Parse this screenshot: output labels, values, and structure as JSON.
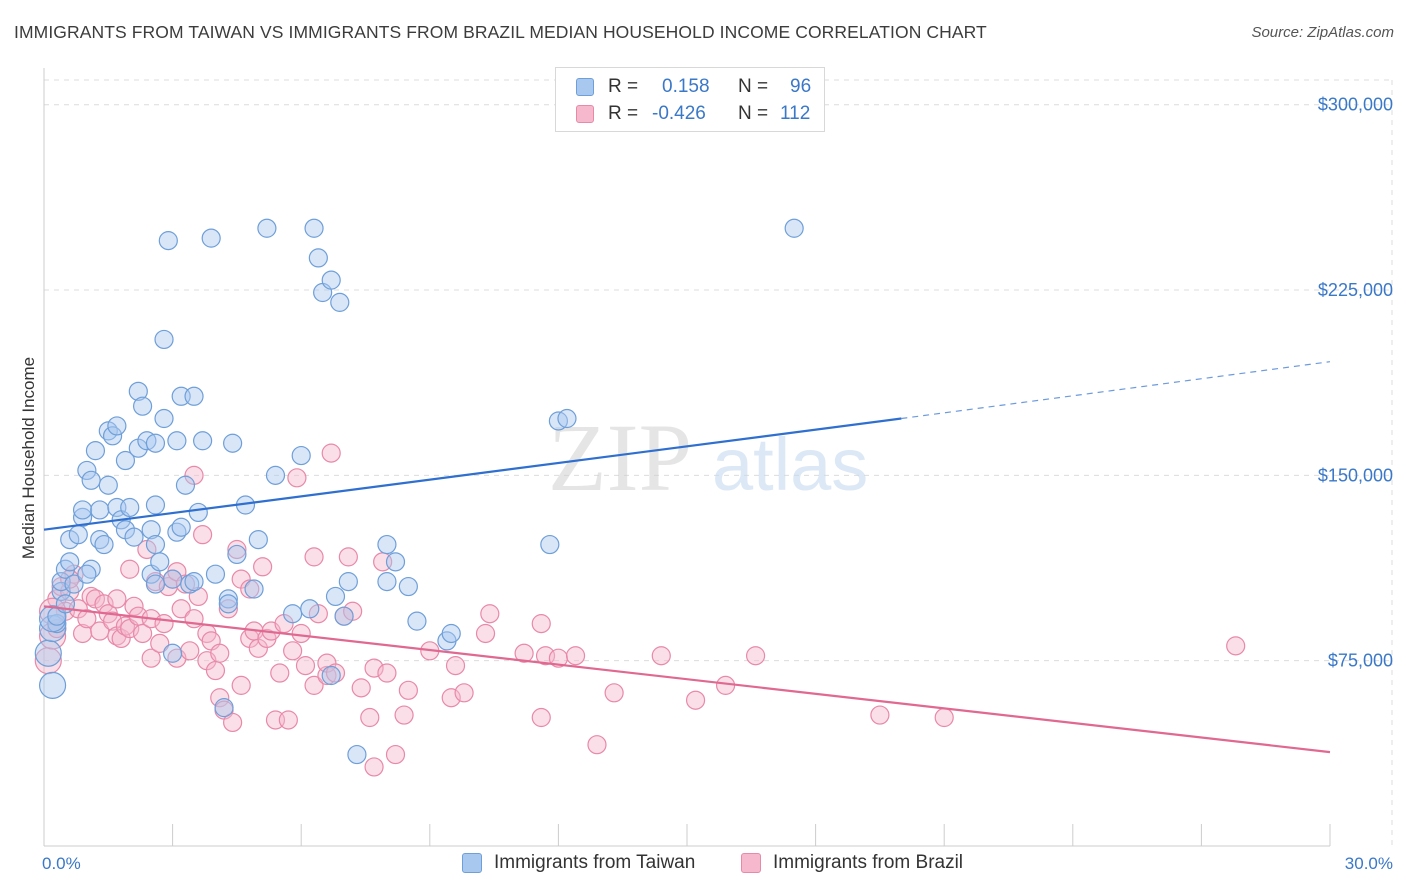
{
  "title": "IMMIGRANTS FROM TAIWAN VS IMMIGRANTS FROM BRAZIL MEDIAN HOUSEHOLD INCOME CORRELATION CHART",
  "source": "Source: ZipAtlas.com",
  "watermark": {
    "zip": "ZIP",
    "atlas": "atlas"
  },
  "legend": {
    "rows": [
      {
        "r_label": "R =",
        "r_value": "0.158",
        "n_label": "N =",
        "n_value": "96"
      },
      {
        "r_label": "R =",
        "r_value": "-0.426",
        "n_label": "N =",
        "n_value": "112"
      }
    ]
  },
  "colors": {
    "taiwan_fill": "#a8c8f0",
    "taiwan_stroke": "#6f9fd8",
    "taiwan_line": "#2f6fcf",
    "brazil_fill": "#f5b8cc",
    "brazil_stroke": "#e889a8",
    "brazil_line": "#e06891",
    "axis_label": "#3a78c8",
    "grid": "#dcdcdc",
    "watermark": "#d0d0d0",
    "watermark_atlas": "#c5d8ee"
  },
  "chart_data": {
    "type": "scatter",
    "title": "IMMIGRANTS FROM TAIWAN VS IMMIGRANTS FROM BRAZIL MEDIAN HOUSEHOLD INCOME CORRELATION CHART",
    "xlabel": "",
    "ylabel": "Median Household Income",
    "xlim": [
      0,
      30
    ],
    "ylim": [
      0,
      310000
    ],
    "x_tick_labels": [
      "0.0%",
      "30.0%"
    ],
    "y_ticks": [
      75000,
      150000,
      225000,
      300000
    ],
    "y_tick_labels": [
      "$75,000",
      "$150,000",
      "$225,000",
      "$300,000"
    ],
    "series": [
      {
        "name": "Immigrants from Taiwan",
        "r": 0.158,
        "n": 96,
        "trend": {
          "x0": 0,
          "y0": 128000,
          "x1": 20,
          "y1": 173000,
          "x_dash_end": 30,
          "y_dash_end": 196000
        },
        "points": [
          [
            0.1,
            78000
          ],
          [
            0.2,
            88000
          ],
          [
            0.3,
            90000
          ],
          [
            0.2,
            92000
          ],
          [
            0.3,
            93000
          ],
          [
            0.4,
            103000
          ],
          [
            0.4,
            107000
          ],
          [
            0.5,
            112000
          ],
          [
            0.6,
            115000
          ],
          [
            0.6,
            124000
          ],
          [
            0.7,
            106000
          ],
          [
            0.8,
            126000
          ],
          [
            0.9,
            133000
          ],
          [
            0.9,
            136000
          ],
          [
            1.0,
            152000
          ],
          [
            1.1,
            148000
          ],
          [
            1.1,
            112000
          ],
          [
            1.2,
            160000
          ],
          [
            1.3,
            124000
          ],
          [
            1.3,
            136000
          ],
          [
            1.4,
            122000
          ],
          [
            1.5,
            146000
          ],
          [
            1.5,
            168000
          ],
          [
            1.6,
            166000
          ],
          [
            1.7,
            137000
          ],
          [
            1.7,
            170000
          ],
          [
            1.8,
            132000
          ],
          [
            1.9,
            128000
          ],
          [
            1.9,
            156000
          ],
          [
            2.0,
            137000
          ],
          [
            2.1,
            125000
          ],
          [
            2.2,
            184000
          ],
          [
            2.2,
            161000
          ],
          [
            2.3,
            178000
          ],
          [
            2.4,
            164000
          ],
          [
            2.5,
            110000
          ],
          [
            2.5,
            128000
          ],
          [
            2.6,
            122000
          ],
          [
            2.6,
            163000
          ],
          [
            2.6,
            106000
          ],
          [
            2.6,
            138000
          ],
          [
            2.7,
            115000
          ],
          [
            2.8,
            173000
          ],
          [
            2.8,
            205000
          ],
          [
            2.9,
            245000
          ],
          [
            3.0,
            108000
          ],
          [
            3.0,
            78000
          ],
          [
            3.1,
            164000
          ],
          [
            3.1,
            127000
          ],
          [
            3.2,
            129000
          ],
          [
            3.2,
            182000
          ],
          [
            3.3,
            146000
          ],
          [
            3.4,
            106000
          ],
          [
            3.5,
            107000
          ],
          [
            3.5,
            182000
          ],
          [
            3.6,
            135000
          ],
          [
            3.7,
            164000
          ],
          [
            3.9,
            246000
          ],
          [
            4.0,
            110000
          ],
          [
            4.2,
            56000
          ],
          [
            4.3,
            100000
          ],
          [
            4.3,
            98000
          ],
          [
            4.4,
            163000
          ],
          [
            4.5,
            118000
          ],
          [
            4.7,
            138000
          ],
          [
            4.9,
            104000
          ],
          [
            5.0,
            124000
          ],
          [
            5.2,
            250000
          ],
          [
            5.4,
            150000
          ],
          [
            5.8,
            94000
          ],
          [
            6.0,
            158000
          ],
          [
            6.2,
            96000
          ],
          [
            6.3,
            250000
          ],
          [
            6.4,
            238000
          ],
          [
            6.5,
            224000
          ],
          [
            6.7,
            229000
          ],
          [
            6.9,
            220000
          ],
          [
            6.7,
            69000
          ],
          [
            6.8,
            101000
          ],
          [
            7.0,
            93000
          ],
          [
            7.1,
            107000
          ],
          [
            7.3,
            37000
          ],
          [
            8.0,
            122000
          ],
          [
            8.0,
            107000
          ],
          [
            8.2,
            115000
          ],
          [
            8.5,
            105000
          ],
          [
            8.7,
            91000
          ],
          [
            9.4,
            83000
          ],
          [
            9.5,
            86000
          ],
          [
            11.8,
            122000
          ],
          [
            12.0,
            172000
          ],
          [
            12.2,
            173000
          ],
          [
            17.5,
            250000
          ],
          [
            0.2,
            65000
          ],
          [
            0.5,
            98000
          ],
          [
            1.0,
            110000
          ]
        ]
      },
      {
        "name": "Immigrants from Brazil",
        "r": -0.426,
        "n": 112,
        "trend": {
          "x0": 0,
          "y0": 97000,
          "x1": 30,
          "y1": 38000
        },
        "points": [
          [
            0.1,
            75000
          ],
          [
            0.2,
            85000
          ],
          [
            0.3,
            88000
          ],
          [
            0.3,
            100000
          ],
          [
            0.4,
            105000
          ],
          [
            0.5,
            95000
          ],
          [
            0.6,
            103000
          ],
          [
            0.7,
            110000
          ],
          [
            0.8,
            96000
          ],
          [
            0.9,
            86000
          ],
          [
            1.0,
            92000
          ],
          [
            1.1,
            101000
          ],
          [
            1.2,
            100000
          ],
          [
            1.3,
            87000
          ],
          [
            1.4,
            98000
          ],
          [
            1.5,
            94000
          ],
          [
            1.6,
            91000
          ],
          [
            1.7,
            85000
          ],
          [
            1.7,
            100000
          ],
          [
            1.8,
            84000
          ],
          [
            1.9,
            89000
          ],
          [
            2.0,
            112000
          ],
          [
            2.0,
            88000
          ],
          [
            2.1,
            97000
          ],
          [
            2.2,
            93000
          ],
          [
            2.3,
            86000
          ],
          [
            2.4,
            120000
          ],
          [
            2.5,
            92000
          ],
          [
            2.5,
            76000
          ],
          [
            2.6,
            107000
          ],
          [
            2.7,
            82000
          ],
          [
            2.8,
            90000
          ],
          [
            2.9,
            105000
          ],
          [
            3.0,
            108000
          ],
          [
            3.1,
            111000
          ],
          [
            3.1,
            76000
          ],
          [
            3.2,
            96000
          ],
          [
            3.3,
            106000
          ],
          [
            3.4,
            79000
          ],
          [
            3.5,
            150000
          ],
          [
            3.5,
            92000
          ],
          [
            3.6,
            101000
          ],
          [
            3.7,
            126000
          ],
          [
            3.8,
            75000
          ],
          [
            3.8,
            86000
          ],
          [
            3.9,
            83000
          ],
          [
            4.0,
            71000
          ],
          [
            4.1,
            78000
          ],
          [
            4.1,
            60000
          ],
          [
            4.2,
            55000
          ],
          [
            4.3,
            96000
          ],
          [
            4.4,
            50000
          ],
          [
            4.5,
            120000
          ],
          [
            4.6,
            108000
          ],
          [
            4.6,
            65000
          ],
          [
            4.8,
            84000
          ],
          [
            4.8,
            104000
          ],
          [
            4.9,
            87000
          ],
          [
            5.0,
            80000
          ],
          [
            5.1,
            113000
          ],
          [
            5.2,
            84000
          ],
          [
            5.3,
            87000
          ],
          [
            5.4,
            51000
          ],
          [
            5.5,
            70000
          ],
          [
            5.6,
            90000
          ],
          [
            5.7,
            51000
          ],
          [
            5.8,
            79000
          ],
          [
            5.9,
            149000
          ],
          [
            6.0,
            86000
          ],
          [
            6.1,
            73000
          ],
          [
            6.3,
            117000
          ],
          [
            6.3,
            65000
          ],
          [
            6.4,
            94000
          ],
          [
            6.6,
            69000
          ],
          [
            6.6,
            74000
          ],
          [
            6.7,
            159000
          ],
          [
            6.8,
            70000
          ],
          [
            7.0,
            93000
          ],
          [
            7.1,
            117000
          ],
          [
            7.2,
            95000
          ],
          [
            7.4,
            64000
          ],
          [
            7.6,
            52000
          ],
          [
            7.7,
            72000
          ],
          [
            7.7,
            32000
          ],
          [
            7.9,
            115000
          ],
          [
            8.0,
            70000
          ],
          [
            8.2,
            37000
          ],
          [
            8.4,
            53000
          ],
          [
            8.5,
            63000
          ],
          [
            9.0,
            79000
          ],
          [
            9.5,
            60000
          ],
          [
            9.6,
            73000
          ],
          [
            9.8,
            62000
          ],
          [
            10.3,
            86000
          ],
          [
            10.4,
            94000
          ],
          [
            11.2,
            78000
          ],
          [
            11.6,
            52000
          ],
          [
            11.6,
            90000
          ],
          [
            11.7,
            77000
          ],
          [
            12.0,
            76000
          ],
          [
            12.4,
            77000
          ],
          [
            12.9,
            41000
          ],
          [
            13.3,
            62000
          ],
          [
            14.4,
            77000
          ],
          [
            15.2,
            59000
          ],
          [
            15.9,
            65000
          ],
          [
            16.6,
            77000
          ],
          [
            19.5,
            53000
          ],
          [
            21.0,
            52000
          ],
          [
            27.8,
            81000
          ],
          [
            0.2,
            95000
          ],
          [
            0.6,
            108000
          ]
        ]
      }
    ]
  },
  "bottom_legend": [
    {
      "label": "Immigrants from Taiwan"
    },
    {
      "label": "Immigrants from Brazil"
    }
  ]
}
